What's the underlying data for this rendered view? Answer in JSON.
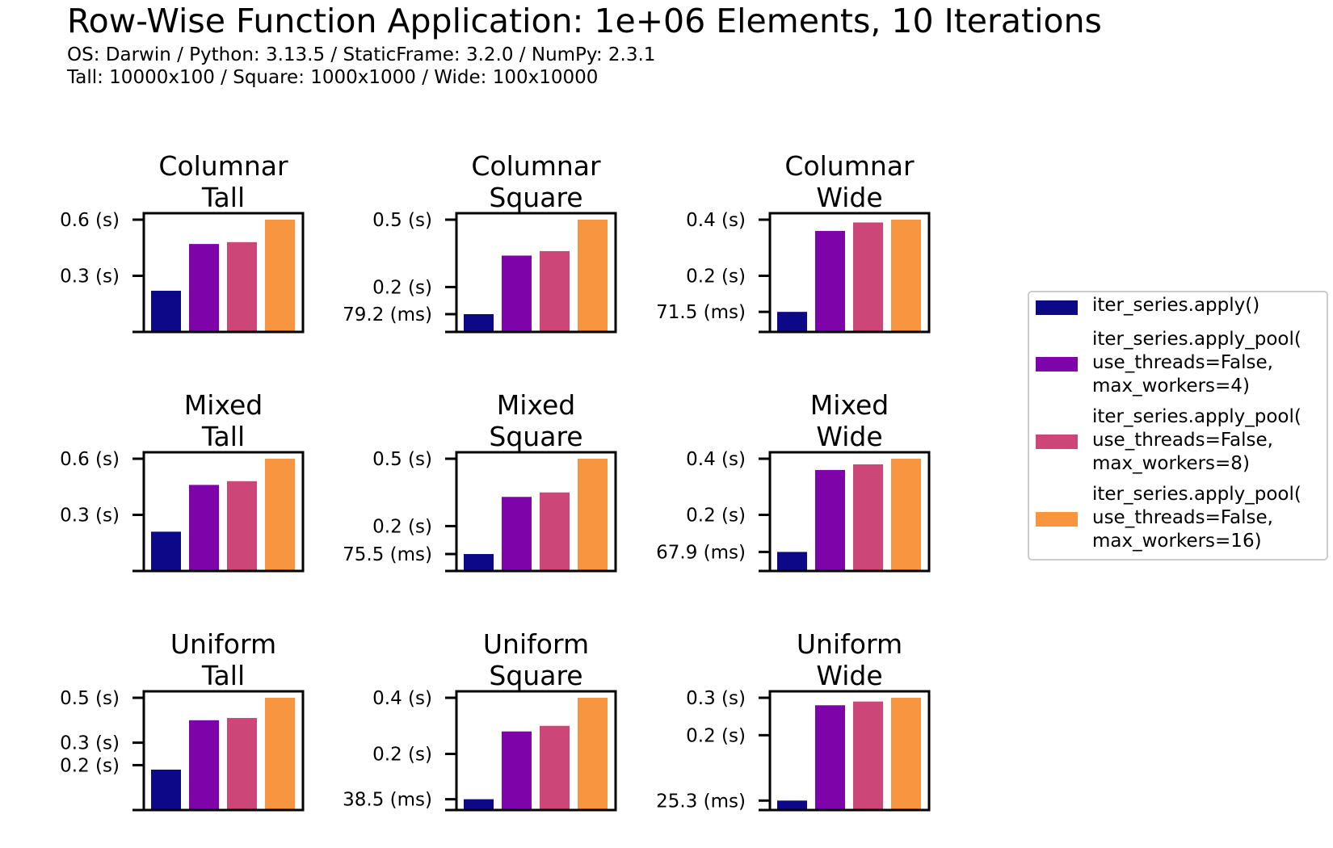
{
  "title": "Row-Wise Function Application: 1e+06 Elements, 10 Iterations",
  "subtitle_lines": [
    "OS: Darwin / Python: 3.13.5 / StaticFrame: 3.2.0 / NumPy: 2.3.1",
    "Tall: 10000x100 / Square: 1000x1000 / Wide: 100x10000"
  ],
  "legend": [
    {
      "label": "iter_series.apply()",
      "color": "#0d0887"
    },
    {
      "label": "iter_series.apply_pool(\nuse_threads=False,\nmax_workers=4)",
      "color": "#7e03a8"
    },
    {
      "label": "iter_series.apply_pool(\nuse_threads=False,\nmax_workers=8)",
      "color": "#cc4778"
    },
    {
      "label": "iter_series.apply_pool(\nuse_threads=False,\nmax_workers=16)",
      "color": "#f89540"
    }
  ],
  "chart_data": [
    {
      "type": "bar",
      "title": "Columnar\nTall",
      "series_names": [
        "iter_series.apply()",
        "iter_series.apply_pool(use_threads=False, max_workers=4)",
        "iter_series.apply_pool(use_threads=False, max_workers=8)",
        "iter_series.apply_pool(use_threads=False, max_workers=16)"
      ],
      "values": [
        0.22,
        0.47,
        0.48,
        0.6
      ],
      "ylim": [
        0,
        0.6
      ],
      "ticks": [
        {
          "value": 0.6,
          "label": "0.6 (s)"
        },
        {
          "value": 0.3,
          "label": "0.3 (s)"
        }
      ]
    },
    {
      "type": "bar",
      "title": "Columnar\nSquare",
      "values": [
        0.0792,
        0.34,
        0.36,
        0.5
      ],
      "ylim": [
        0,
        0.5
      ],
      "ticks": [
        {
          "value": 0.5,
          "label": "0.5 (s)"
        },
        {
          "value": 0.2,
          "label": "0.2 (s)"
        },
        {
          "value": 0.0792,
          "label": "79.2 (ms)"
        }
      ]
    },
    {
      "type": "bar",
      "title": "Columnar\nWide",
      "values": [
        0.0715,
        0.36,
        0.39,
        0.4
      ],
      "ylim": [
        0,
        0.4
      ],
      "ticks": [
        {
          "value": 0.4,
          "label": "0.4 (s)"
        },
        {
          "value": 0.2,
          "label": "0.2 (s)"
        },
        {
          "value": 0.0715,
          "label": "71.5 (ms)"
        }
      ]
    },
    {
      "type": "bar",
      "title": "Mixed\nTall",
      "values": [
        0.21,
        0.46,
        0.48,
        0.6
      ],
      "ylim": [
        0,
        0.6
      ],
      "ticks": [
        {
          "value": 0.6,
          "label": "0.6 (s)"
        },
        {
          "value": 0.3,
          "label": "0.3 (s)"
        }
      ]
    },
    {
      "type": "bar",
      "title": "Mixed\nSquare",
      "values": [
        0.0755,
        0.33,
        0.35,
        0.5
      ],
      "ylim": [
        0,
        0.5
      ],
      "ticks": [
        {
          "value": 0.5,
          "label": "0.5 (s)"
        },
        {
          "value": 0.2,
          "label": "0.2 (s)"
        },
        {
          "value": 0.0755,
          "label": "75.5 (ms)"
        }
      ]
    },
    {
      "type": "bar",
      "title": "Mixed\nWide",
      "values": [
        0.0679,
        0.36,
        0.38,
        0.4
      ],
      "ylim": [
        0,
        0.4
      ],
      "ticks": [
        {
          "value": 0.4,
          "label": "0.4 (s)"
        },
        {
          "value": 0.2,
          "label": "0.2 (s)"
        },
        {
          "value": 0.0679,
          "label": "67.9 (ms)"
        }
      ]
    },
    {
      "type": "bar",
      "title": "Uniform\nTall",
      "values": [
        0.18,
        0.4,
        0.41,
        0.5
      ],
      "ylim": [
        0,
        0.5
      ],
      "ticks": [
        {
          "value": 0.5,
          "label": "0.5 (s)"
        },
        {
          "value": 0.3,
          "label": "0.3 (s)"
        },
        {
          "value": 0.2,
          "label": "0.2 (s)"
        }
      ]
    },
    {
      "type": "bar",
      "title": "Uniform\nSquare",
      "values": [
        0.0385,
        0.28,
        0.3,
        0.4
      ],
      "ylim": [
        0,
        0.4
      ],
      "ticks": [
        {
          "value": 0.4,
          "label": "0.4 (s)"
        },
        {
          "value": 0.2,
          "label": "0.2 (s)"
        },
        {
          "value": 0.0385,
          "label": "38.5 (ms)"
        }
      ]
    },
    {
      "type": "bar",
      "title": "Uniform\nWide",
      "values": [
        0.0253,
        0.28,
        0.29,
        0.3
      ],
      "ylim": [
        0,
        0.3
      ],
      "ticks": [
        {
          "value": 0.3,
          "label": "0.3 (s)"
        },
        {
          "value": 0.2,
          "label": "0.2 (s)"
        },
        {
          "value": 0.0253,
          "label": "25.3 (ms)"
        }
      ]
    }
  ]
}
